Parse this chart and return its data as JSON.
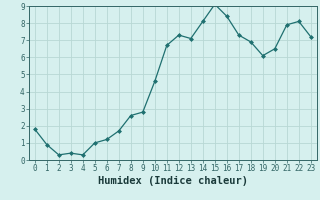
{
  "xlabel": "Humidex (Indice chaleur)",
  "ylabel": "",
  "x_values": [
    0,
    1,
    2,
    3,
    4,
    5,
    6,
    7,
    8,
    9,
    10,
    11,
    12,
    13,
    14,
    15,
    16,
    17,
    18,
    19,
    20,
    21,
    22,
    23
  ],
  "y_values": [
    1.8,
    0.9,
    0.3,
    0.4,
    0.3,
    1.0,
    1.2,
    1.7,
    2.6,
    2.8,
    4.6,
    6.7,
    7.3,
    7.1,
    8.1,
    9.1,
    8.4,
    7.3,
    6.9,
    6.1,
    6.5,
    7.9,
    8.1,
    7.2
  ],
  "line_color": "#1f7070",
  "marker_color": "#1f7070",
  "bg_color": "#d6f0ee",
  "grid_color": "#b8d8d4",
  "ylim": [
    0,
    9
  ],
  "xlim_min": -0.5,
  "xlim_max": 23.5,
  "yticks": [
    0,
    1,
    2,
    3,
    4,
    5,
    6,
    7,
    8,
    9
  ],
  "xticks": [
    0,
    1,
    2,
    3,
    4,
    5,
    6,
    7,
    8,
    9,
    10,
    11,
    12,
    13,
    14,
    15,
    16,
    17,
    18,
    19,
    20,
    21,
    22,
    23
  ],
  "tick_fontsize": 5.5,
  "label_fontsize": 7.5,
  "axis_label_color": "#1a3a3a",
  "spine_color": "#336666"
}
